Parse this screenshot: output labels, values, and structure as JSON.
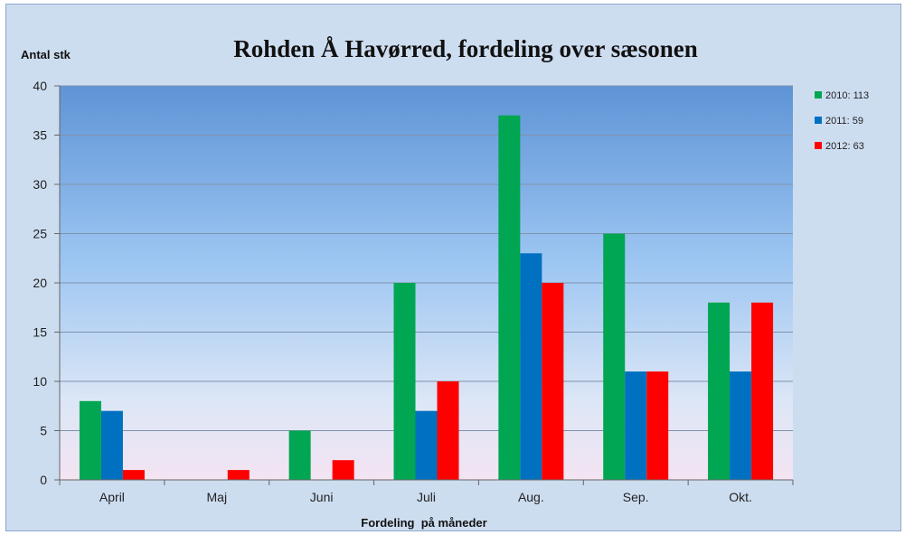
{
  "chart_data": {
    "type": "bar",
    "title": "Rohden Å Havørred, fordeling over sæsonen",
    "ylabel": "Antal stk",
    "xlabel": "Fordeling  på måneder",
    "categories": [
      "April",
      "Maj",
      "Juni",
      "Juli",
      "Aug.",
      "Sep.",
      "Okt."
    ],
    "ylim": [
      0,
      40
    ],
    "yticks": [
      0,
      5,
      10,
      15,
      20,
      25,
      30,
      35,
      40
    ],
    "grid": true,
    "legend_position": "right",
    "series": [
      {
        "name": "2010: 113",
        "color": "#00a651",
        "values": [
          8,
          0,
          5,
          20,
          37,
          25,
          18
        ]
      },
      {
        "name": "2011: 59",
        "color": "#0070c0",
        "values": [
          7,
          0,
          0,
          7,
          23,
          11,
          11
        ]
      },
      {
        "name": "2012: 63",
        "color": "#ff0000",
        "values": [
          1,
          1,
          2,
          10,
          20,
          11,
          18
        ]
      }
    ]
  }
}
